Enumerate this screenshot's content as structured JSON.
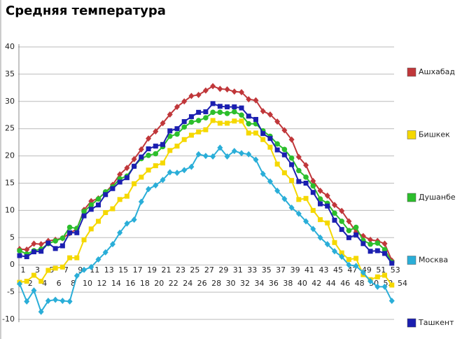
{
  "chart_data": {
    "type": "line",
    "title": "Средняя температура",
    "x": [
      1,
      2,
      3,
      4,
      5,
      6,
      7,
      8,
      9,
      10,
      11,
      12,
      13,
      14,
      15,
      16,
      17,
      18,
      19,
      20,
      21,
      22,
      23,
      24,
      25,
      26,
      27,
      28,
      29,
      30,
      31,
      32,
      33,
      34,
      35,
      36,
      37,
      38,
      39,
      40,
      41,
      42,
      43,
      44,
      45,
      46,
      47,
      48,
      49,
      50,
      51,
      52,
      53
    ],
    "xlim": [
      1,
      54
    ],
    "xticks": [
      1,
      2,
      3,
      4,
      5,
      6,
      7,
      8,
      9,
      10,
      11,
      12,
      13,
      14,
      15,
      16,
      17,
      18,
      19,
      20,
      21,
      22,
      23,
      24,
      25,
      26,
      27,
      28,
      29,
      30,
      31,
      32,
      33,
      34,
      35,
      36,
      37,
      38,
      39,
      40,
      41,
      42,
      43,
      44,
      45,
      46,
      47,
      48,
      49,
      50,
      51,
      52,
      53,
      54
    ],
    "ylim": [
      -10,
      40
    ],
    "yticks": [
      -10,
      -5,
      0,
      5,
      10,
      15,
      20,
      25,
      30,
      35,
      40
    ],
    "grid": true,
    "series": [
      {
        "name": "Ашхабад",
        "color": "#c0373a",
        "marker": "diamond",
        "values": [
          2.9,
          2.8,
          3.9,
          3.8,
          4.4,
          4.6,
          4.9,
          5.8,
          6.6,
          10.1,
          11.7,
          12.2,
          13.3,
          14.7,
          16.6,
          17.8,
          19.4,
          21.2,
          23.2,
          24.5,
          26.0,
          27.6,
          29.0,
          30.0,
          31.0,
          31.2,
          32.0,
          32.8,
          32.3,
          32.2,
          31.8,
          31.7,
          30.4,
          30.2,
          28.2,
          27.6,
          26.3,
          24.7,
          23.0,
          19.8,
          18.3,
          15.4,
          13.6,
          12.7,
          11.0,
          9.9,
          8.0,
          6.0,
          5.3,
          4.6,
          4.4,
          3.9,
          0.8
        ]
      },
      {
        "name": "Бишкек",
        "color": "#f5d800",
        "marker": "square",
        "values": [
          -3.2,
          -3.0,
          -1.9,
          -3.0,
          -1.0,
          -0.6,
          -0.4,
          1.3,
          1.3,
          4.6,
          6.6,
          8.0,
          9.6,
          10.3,
          12.0,
          12.6,
          14.9,
          16.1,
          17.4,
          18.2,
          18.7,
          21.0,
          21.8,
          23.0,
          23.8,
          24.4,
          24.8,
          26.5,
          26.0,
          26.0,
          26.4,
          26.4,
          24.2,
          24.2,
          23.0,
          21.6,
          18.5,
          16.9,
          15.5,
          12.0,
          12.2,
          10.0,
          8.3,
          7.7,
          4.1,
          2.2,
          1.0,
          1.2,
          -1.8,
          -2.7,
          -2.2,
          -1.9,
          -3.7
        ]
      },
      {
        "name": "Душанбе",
        "color": "#2cbe2c",
        "marker": "circle",
        "values": [
          2.6,
          2.0,
          2.6,
          2.9,
          3.9,
          4.4,
          4.9,
          6.9,
          6.7,
          9.8,
          11.0,
          12.1,
          13.4,
          14.3,
          15.8,
          16.3,
          18.1,
          19.5,
          20.1,
          20.4,
          21.7,
          23.6,
          24.0,
          25.3,
          26.2,
          26.5,
          27.0,
          28.0,
          28.0,
          27.8,
          28.1,
          27.5,
          25.9,
          25.9,
          24.6,
          23.6,
          22.2,
          21.2,
          19.6,
          17.3,
          16.1,
          14.5,
          12.1,
          11.3,
          9.5,
          8.0,
          6.3,
          6.9,
          4.5,
          3.8,
          4.0,
          2.8,
          0.5
        ]
      },
      {
        "name": "Москва",
        "color": "#2aaed8",
        "marker": "diamond",
        "values": [
          -3.5,
          -6.7,
          -4.7,
          -8.6,
          -6.6,
          -6.4,
          -6.6,
          -6.7,
          -2.0,
          -0.9,
          -0.4,
          1.0,
          2.3,
          3.8,
          5.9,
          7.6,
          8.3,
          11.6,
          13.9,
          14.6,
          15.6,
          17.0,
          16.9,
          17.4,
          18.0,
          20.3,
          20.0,
          19.9,
          21.5,
          19.9,
          20.9,
          20.5,
          20.3,
          19.3,
          16.7,
          15.3,
          13.6,
          12.1,
          10.5,
          9.4,
          8.0,
          6.6,
          5.0,
          3.8,
          2.5,
          1.5,
          0.0,
          -0.2,
          -1.4,
          -3.0,
          -4.0,
          -4.0,
          -6.6
        ]
      },
      {
        "name": "Ташкент",
        "color": "#1b1fb0",
        "marker": "square",
        "values": [
          1.7,
          1.5,
          2.4,
          2.5,
          4.0,
          3.0,
          3.5,
          5.9,
          5.9,
          9.0,
          10.2,
          11.0,
          12.9,
          14.0,
          15.2,
          16.0,
          18.1,
          19.8,
          21.3,
          21.8,
          22.1,
          24.6,
          25.0,
          26.3,
          27.2,
          28.0,
          28.1,
          29.6,
          29.1,
          29.0,
          29.0,
          28.8,
          27.3,
          26.7,
          24.1,
          23.2,
          21.1,
          20.2,
          18.4,
          15.3,
          15.0,
          13.3,
          11.2,
          10.8,
          8.2,
          6.5,
          5.0,
          5.5,
          3.9,
          2.5,
          2.6,
          2.1,
          0.3
        ]
      }
    ]
  }
}
